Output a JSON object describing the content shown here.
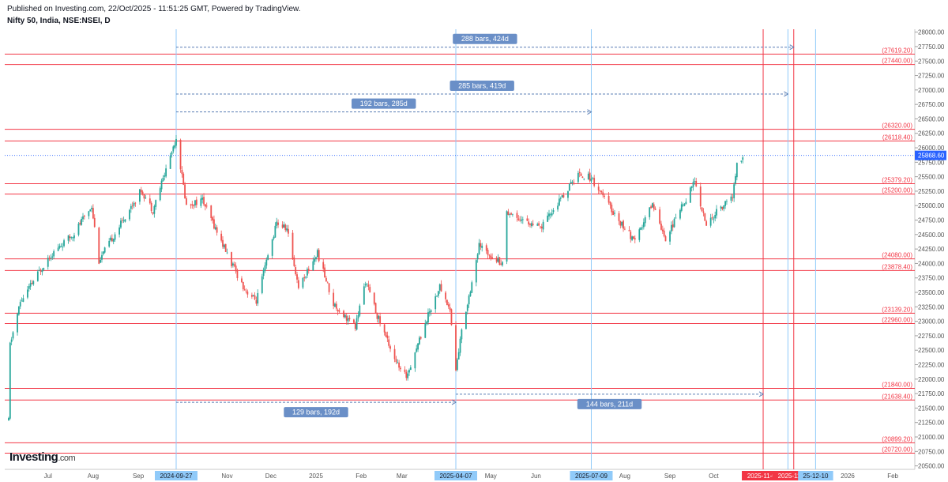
{
  "header": {
    "published": "Published on Investing.com, 22/Oct/2025 - 11:51:25 GMT, Powered by TradingView.",
    "symbol": "Nifty 50, India, NSE:NSEI, D"
  },
  "logo": {
    "main": "Investing",
    "suffix": ".com"
  },
  "colors": {
    "up": "#26a69a",
    "down": "#ef5350",
    "hline": "#f23645",
    "vline": "#90caf9",
    "label_bg": "#6a8fc7",
    "last_price_bg": "#2962ff",
    "date_highlight_bg": "#90caf9",
    "date_red_bg": "#f23645"
  },
  "chart_data": {
    "type": "candlestick",
    "title": "Nifty 50, India, NSE:NSEI, D",
    "y_range": [
      20440,
      28050
    ],
    "y_ticks": [
      20500,
      20750,
      21000,
      21250,
      21500,
      21750,
      22000,
      22250,
      22500,
      22750,
      23000,
      23250,
      23500,
      23750,
      24000,
      24250,
      24500,
      24750,
      25000,
      25250,
      25500,
      25750,
      26000,
      26250,
      26500,
      26750,
      27000,
      27250,
      27500,
      27750,
      28000
    ],
    "x_ticks": [
      {
        "label": "Jul",
        "date": "2024-07-01"
      },
      {
        "label": "Aug",
        "date": "2024-08-01"
      },
      {
        "label": "Sep",
        "date": "2024-09-01"
      },
      {
        "label": "2024-09-27",
        "date": "2024-09-27",
        "highlight": "blue"
      },
      {
        "label": "Nov",
        "date": "2024-11-01"
      },
      {
        "label": "Dec",
        "date": "2024-12-01"
      },
      {
        "label": "2025",
        "date": "2025-01-01"
      },
      {
        "label": "Feb",
        "date": "2025-02-01"
      },
      {
        "label": "Mar",
        "date": "2025-03-01"
      },
      {
        "label": "2025-04-07",
        "date": "2025-04-07",
        "highlight": "blue"
      },
      {
        "label": "May",
        "date": "2025-05-01"
      },
      {
        "label": "Jun",
        "date": "2025-06-01"
      },
      {
        "label": "2025-07-09",
        "date": "2025-07-09",
        "highlight": "blue"
      },
      {
        "label": "Aug",
        "date": "2025-08-01"
      },
      {
        "label": "Sep",
        "date": "2025-09-01"
      },
      {
        "label": "Oct",
        "date": "2025-10-01"
      },
      {
        "label": "2025-11-04",
        "date": "2025-11-04",
        "highlight": "red"
      },
      {
        "label": "2025-11-25",
        "date": "2025-11-25",
        "highlight": "red"
      },
      {
        "label": "25-12-10",
        "date": "2025-12-10",
        "highlight": "blue"
      },
      {
        "label": "2026",
        "date": "2026-01-01"
      },
      {
        "label": "Feb",
        "date": "2026-02-01"
      }
    ],
    "horizontal_levels": [
      {
        "value": 27619.2,
        "label": "(27619.20)"
      },
      {
        "value": 27440.0,
        "label": "(27440.00)"
      },
      {
        "value": 26320.0,
        "label": "(26320.00)"
      },
      {
        "value": 26118.4,
        "label": "(26118.40)"
      },
      {
        "value": 25379.2,
        "label": "(25379.20)"
      },
      {
        "value": 25200.0,
        "label": "(25200.00)"
      },
      {
        "value": 24080.0,
        "label": "(24080.00)"
      },
      {
        "value": 23878.4,
        "label": "(23878.40)"
      },
      {
        "value": 23139.2,
        "label": "(23139.20)"
      },
      {
        "value": 22960.0,
        "label": "(22960.00)"
      },
      {
        "value": 21840.0,
        "label": "(21840.00)"
      },
      {
        "value": 21638.4,
        "label": "(21638.40)"
      },
      {
        "value": 20899.2,
        "label": "(20899.20)"
      },
      {
        "value": 20720.0,
        "label": "(20720.00)"
      }
    ],
    "last_price": {
      "value": 25868.6,
      "label": "25868.60"
    },
    "vertical_lines": [
      {
        "date": "2024-09-27",
        "color": "blue"
      },
      {
        "date": "2025-04-07",
        "color": "blue"
      },
      {
        "date": "2025-07-09",
        "color": "blue"
      },
      {
        "date": "2025-11-04",
        "color": "red"
      },
      {
        "date": "2025-11-21",
        "color": "blue"
      },
      {
        "date": "2025-11-25",
        "color": "red"
      },
      {
        "date": "2025-12-10",
        "color": "blue"
      }
    ],
    "measurements": [
      {
        "label": "288 bars, 424d",
        "from": "2024-09-27",
        "to": "2025-11-25",
        "y": 27740
      },
      {
        "label": "285 bars, 419d",
        "from": "2024-09-27",
        "to": "2025-11-21",
        "y": 26930
      },
      {
        "label": "192 bars, 285d",
        "from": "2024-09-27",
        "to": "2025-07-09",
        "y": 26620
      },
      {
        "label": "129 bars, 192d",
        "from": "2024-09-27",
        "to": "2025-04-07",
        "y": 21600
      },
      {
        "label": "144 bars, 211d",
        "from": "2025-04-07",
        "to": "2025-11-04",
        "y": 21740
      }
    ],
    "key_points": [
      {
        "date": "2024-06-04",
        "value": 21280
      },
      {
        "date": "2024-06-05",
        "value": 22600
      },
      {
        "date": "2024-06-12",
        "value": 23330
      },
      {
        "date": "2024-07-01",
        "value": 24100
      },
      {
        "date": "2024-07-18",
        "value": 24500
      },
      {
        "date": "2024-07-31",
        "value": 25000
      },
      {
        "date": "2024-08-05",
        "value": 24050
      },
      {
        "date": "2024-08-20",
        "value": 24690
      },
      {
        "date": "2024-09-03",
        "value": 25270
      },
      {
        "date": "2024-09-11",
        "value": 24920
      },
      {
        "date": "2024-09-27",
        "value": 26180
      },
      {
        "date": "2024-10-04",
        "value": 25000
      },
      {
        "date": "2024-10-15",
        "value": 25100
      },
      {
        "date": "2024-11-04",
        "value": 24000
      },
      {
        "date": "2024-11-13",
        "value": 23560
      },
      {
        "date": "2024-11-21",
        "value": 23350
      },
      {
        "date": "2024-12-05",
        "value": 24700
      },
      {
        "date": "2024-12-12",
        "value": 24600
      },
      {
        "date": "2024-12-20",
        "value": 23600
      },
      {
        "date": "2025-01-02",
        "value": 24180
      },
      {
        "date": "2025-01-13",
        "value": 23300
      },
      {
        "date": "2025-01-28",
        "value": 22900
      },
      {
        "date": "2025-02-04",
        "value": 23700
      },
      {
        "date": "2025-02-12",
        "value": 23100
      },
      {
        "date": "2025-02-28",
        "value": 22130
      },
      {
        "date": "2025-03-04",
        "value": 22050
      },
      {
        "date": "2025-03-20",
        "value": 23180
      },
      {
        "date": "2025-03-27",
        "value": 23600
      },
      {
        "date": "2025-04-03",
        "value": 23200
      },
      {
        "date": "2025-04-07",
        "value": 22160
      },
      {
        "date": "2025-04-11",
        "value": 22830
      },
      {
        "date": "2025-04-23",
        "value": 24300
      },
      {
        "date": "2025-05-09",
        "value": 24000
      },
      {
        "date": "2025-05-12",
        "value": 24900
      },
      {
        "date": "2025-06-04",
        "value": 24600
      },
      {
        "date": "2025-06-30",
        "value": 25550
      },
      {
        "date": "2025-07-09",
        "value": 25480
      },
      {
        "date": "2025-07-25",
        "value": 24850
      },
      {
        "date": "2025-08-08",
        "value": 24360
      },
      {
        "date": "2025-08-20",
        "value": 25050
      },
      {
        "date": "2025-08-29",
        "value": 24430
      },
      {
        "date": "2025-09-18",
        "value": 25420
      },
      {
        "date": "2025-09-26",
        "value": 24650
      },
      {
        "date": "2025-10-03",
        "value": 24890
      },
      {
        "date": "2025-10-14",
        "value": 25150
      },
      {
        "date": "2025-10-17",
        "value": 25700
      },
      {
        "date": "2025-10-21",
        "value": 25868.6
      }
    ]
  }
}
